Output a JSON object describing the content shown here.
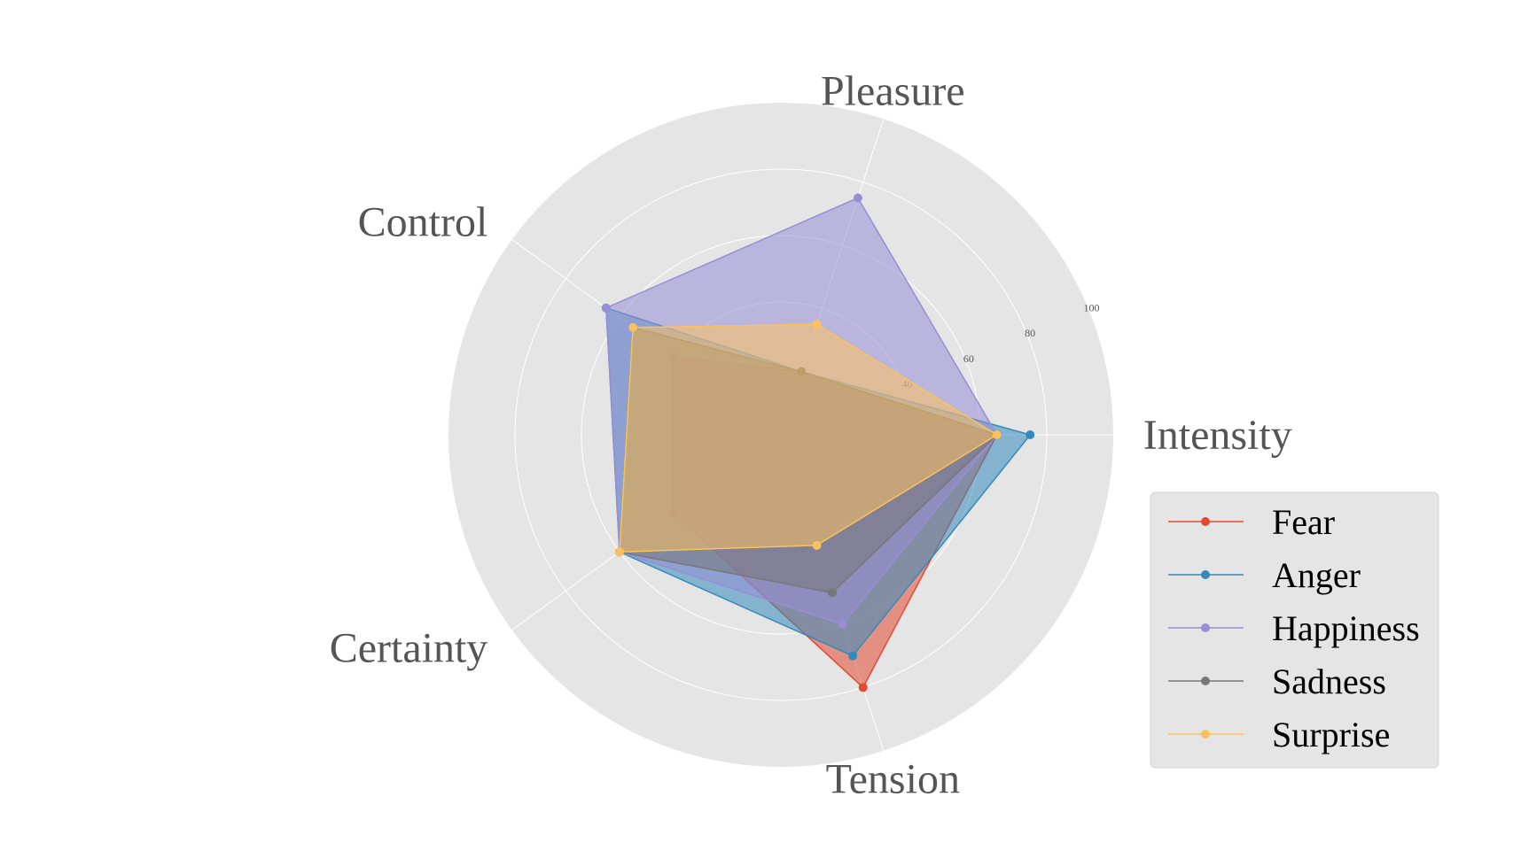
{
  "chart_data": {
    "type": "radar",
    "axes": [
      "Intensity",
      "Pleasure",
      "Control",
      "Certainty",
      "Tension"
    ],
    "rlim": [
      0,
      100
    ],
    "rticks": [
      20,
      40,
      60,
      80,
      100
    ],
    "rtick_labels": [
      "20",
      "40",
      "60",
      "80",
      "100"
    ],
    "grid": true,
    "legend_position": "right",
    "series": [
      {
        "name": "Fear",
        "color": "#E24A33",
        "values": [
          65,
          20,
          40,
          40,
          80
        ]
      },
      {
        "name": "Anger",
        "color": "#348ABD",
        "values": [
          75,
          20,
          65,
          60,
          70
        ]
      },
      {
        "name": "Happiness",
        "color": "#988ED5",
        "values": [
          65,
          75,
          65,
          60,
          60
        ]
      },
      {
        "name": "Sadness",
        "color": "#777777",
        "values": [
          65,
          20,
          55,
          60,
          50
        ]
      },
      {
        "name": "Surprise",
        "color": "#FBC15E",
        "values": [
          65,
          35,
          55,
          60,
          35
        ]
      }
    ]
  }
}
